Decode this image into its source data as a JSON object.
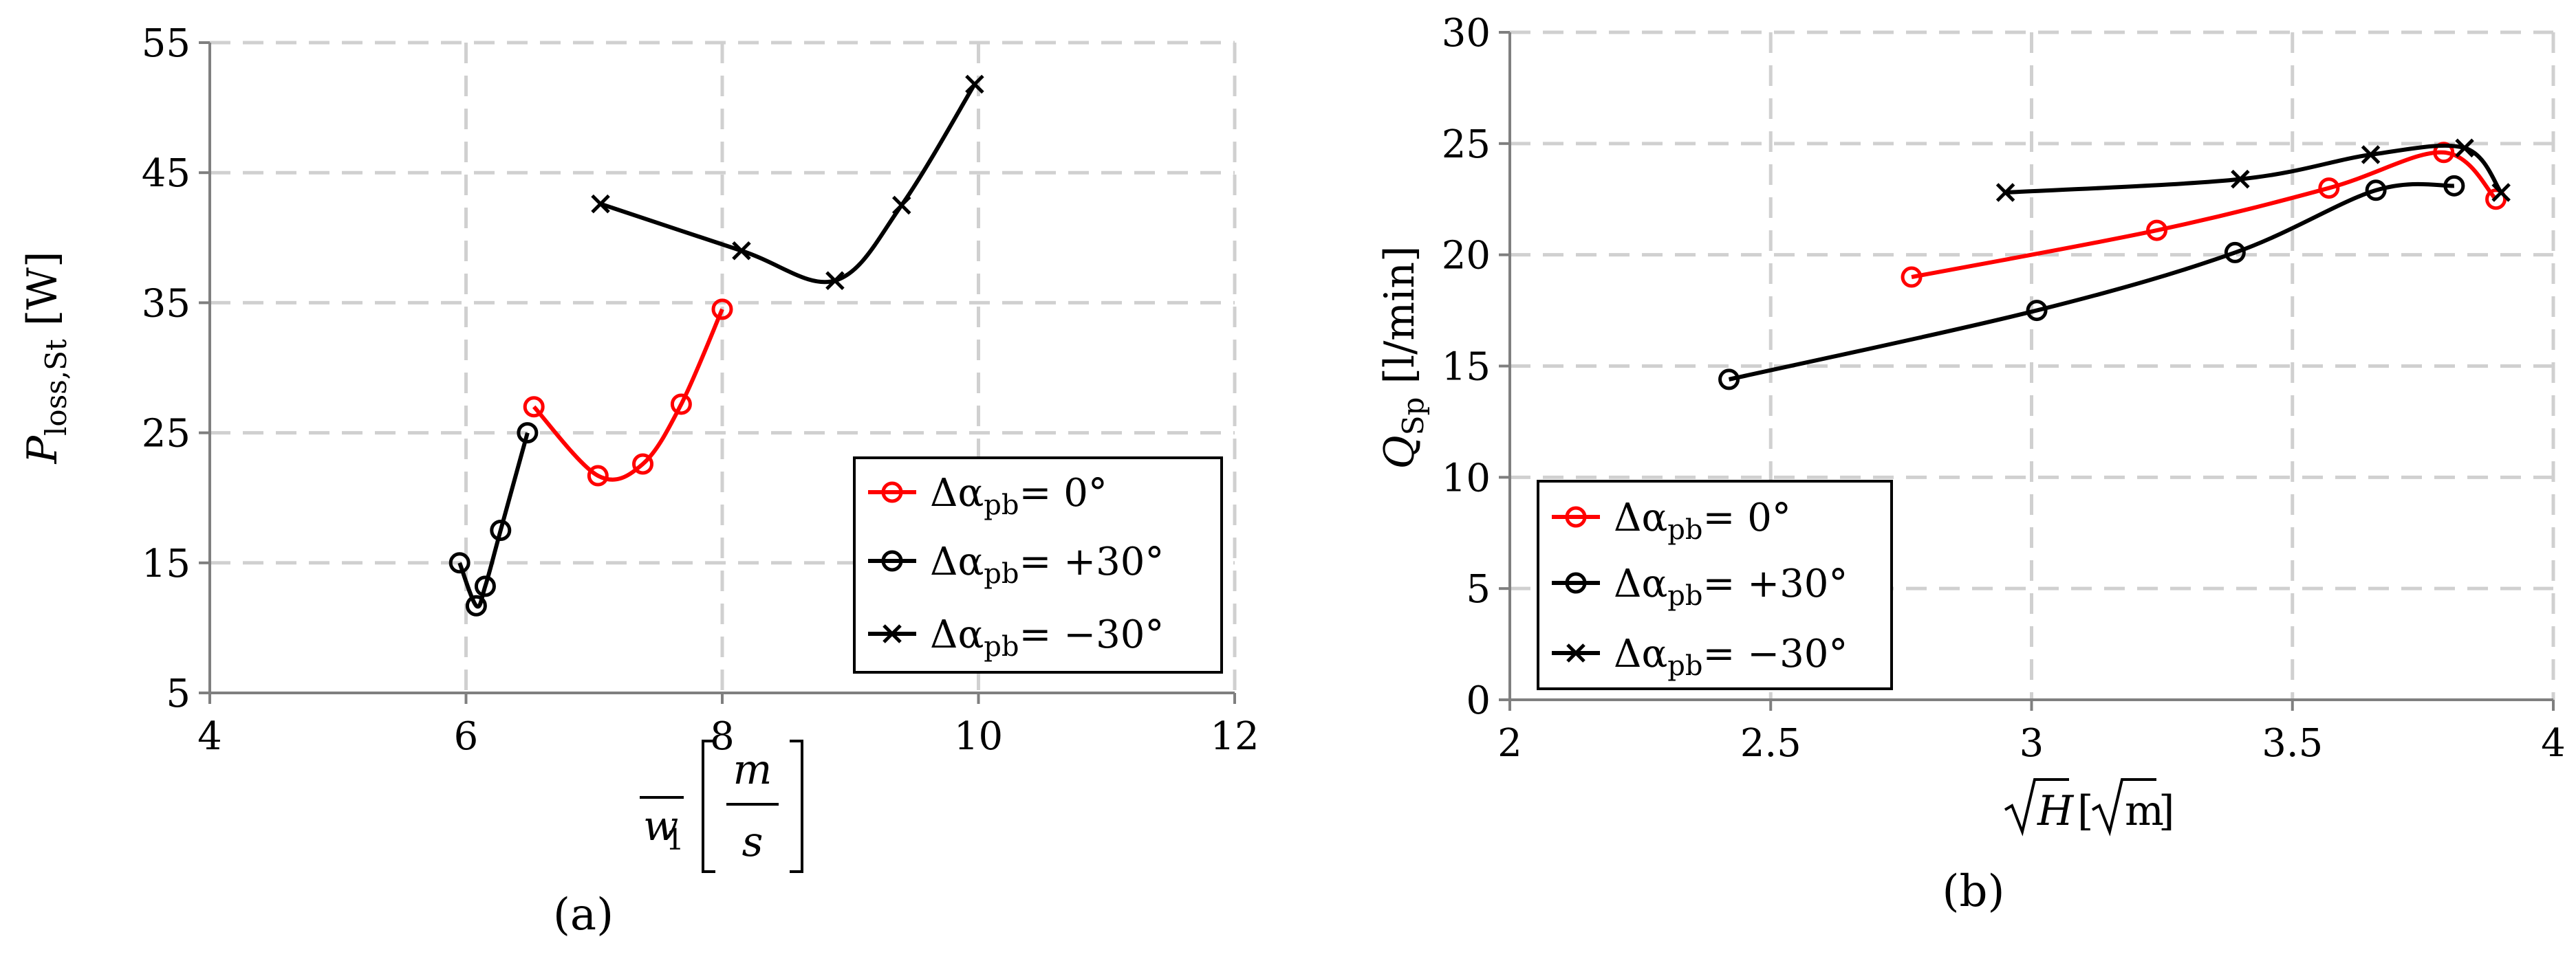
{
  "chart_data": [
    {
      "type": "line",
      "panel_label": "(a)",
      "ylabel": {
        "main": "P",
        "sub": "loss,St",
        "unit": "[W]"
      },
      "xlabel": {
        "symbol": "w",
        "sub": "1",
        "numerator": "m",
        "denominator": "s"
      },
      "xlim": [
        4,
        12
      ],
      "ylim": [
        5,
        55
      ],
      "xticks": [
        "4",
        "6",
        "8",
        "10",
        "12"
      ],
      "yticks": [
        "5",
        "15",
        "25",
        "35",
        "45",
        "55"
      ],
      "grid": true,
      "legend_position": "bottom-right",
      "series": [
        {
          "name": "Δα_pb = 0°",
          "label": {
            "pre": "Δα",
            "sub": "pb",
            "post": "= 0°"
          },
          "color": "#ff0000",
          "marker": "circle",
          "points": [
            [
              6.53,
              27.0
            ],
            [
              7.03,
              21.7
            ],
            [
              7.38,
              22.6
            ],
            [
              7.68,
              27.2
            ],
            [
              8.0,
              34.5
            ]
          ]
        },
        {
          "name": "Δα_pb = +30°",
          "label": {
            "pre": "Δα",
            "sub": "pb",
            "post": "= +30°"
          },
          "color": "#000000",
          "marker": "circle",
          "points": [
            [
              5.95,
              15.0
            ],
            [
              6.08,
              11.7
            ],
            [
              6.15,
              13.2
            ],
            [
              6.27,
              17.5
            ],
            [
              6.48,
              25.0
            ]
          ]
        },
        {
          "name": "Δα_pb = −30°",
          "label": {
            "pre": "Δα",
            "sub": "pb",
            "post": "= −30°"
          },
          "color": "#000000",
          "marker": "cross",
          "points": [
            [
              7.05,
              42.6
            ],
            [
              8.15,
              39.0
            ],
            [
              8.88,
              36.7
            ],
            [
              9.4,
              42.5
            ],
            [
              9.97,
              51.8
            ]
          ]
        }
      ]
    },
    {
      "type": "line",
      "panel_label": "(b)",
      "ylabel": {
        "main": "Q",
        "sub": "Sp",
        "unit": "[l/min]"
      },
      "xlabel": {
        "symbol": "H",
        "unit_root": "m"
      },
      "xlim": [
        2,
        4
      ],
      "ylim": [
        0,
        30
      ],
      "xticks": [
        "2",
        "2.5",
        "3",
        "3.5",
        "4"
      ],
      "yticks": [
        "0",
        "5",
        "10",
        "15",
        "20",
        "25",
        "30"
      ],
      "grid": true,
      "legend_position": "bottom-left",
      "series": [
        {
          "name": "Δα_pb = 0°",
          "label": {
            "pre": "Δα",
            "sub": "pb",
            "post": "= 0°"
          },
          "color": "#ff0000",
          "marker": "circle",
          "points": [
            [
              2.77,
              19.0
            ],
            [
              3.24,
              21.1
            ],
            [
              3.57,
              23.0
            ],
            [
              3.79,
              24.6
            ],
            [
              3.89,
              22.5
            ]
          ]
        },
        {
          "name": "Δα_pb = +30°",
          "label": {
            "pre": "Δα",
            "sub": "pb",
            "post": "= +30°"
          },
          "color": "#000000",
          "marker": "circle",
          "points": [
            [
              2.42,
              14.4
            ],
            [
              3.01,
              17.5
            ],
            [
              3.39,
              20.1
            ],
            [
              3.66,
              22.9
            ],
            [
              3.81,
              23.1
            ]
          ]
        },
        {
          "name": "Δα_pb = −30°",
          "label": {
            "pre": "Δα",
            "sub": "pb",
            "post": "= −30°"
          },
          "color": "#000000",
          "marker": "cross",
          "points": [
            [
              2.95,
              22.8
            ],
            [
              3.4,
              23.4
            ],
            [
              3.65,
              24.5
            ],
            [
              3.83,
              24.8
            ],
            [
              3.9,
              22.8
            ]
          ]
        }
      ]
    }
  ]
}
